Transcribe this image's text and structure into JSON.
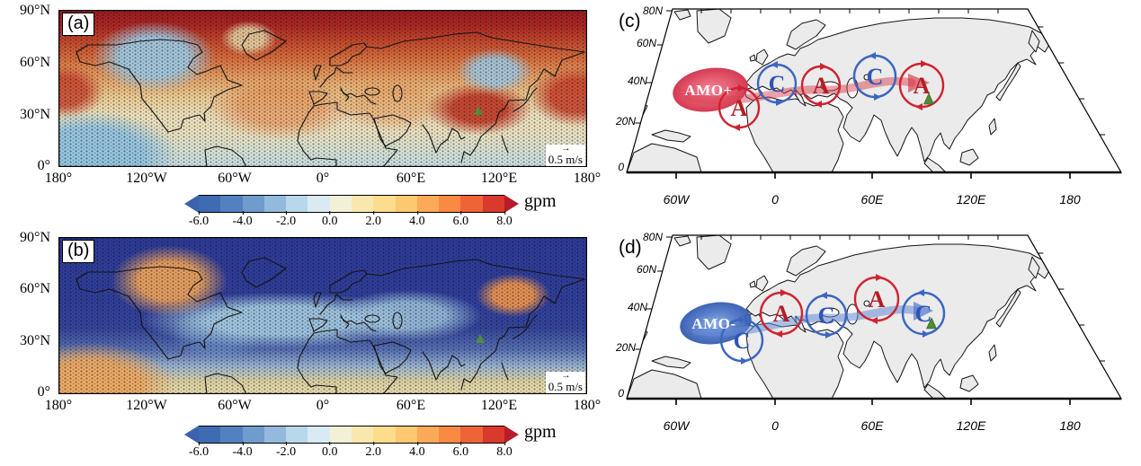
{
  "figure": {
    "panel_a": {
      "tag": "(a)",
      "lat_ticks": [
        "90°N",
        "60°N",
        "30°N",
        "0°"
      ],
      "lon_ticks": [
        "180°",
        "120°W",
        "60°W",
        "0°",
        "60°E",
        "120°E",
        "180°"
      ],
      "vector_ref": "0.5 m/s"
    },
    "panel_b": {
      "tag": "(b)",
      "lat_ticks": [
        "90°N",
        "60°N",
        "30°N",
        "0°"
      ],
      "lon_ticks": [
        "180°",
        "120°W",
        "60°W",
        "0°",
        "60°E",
        "120°E",
        "180°"
      ],
      "vector_ref": "0.5 m/s"
    },
    "colorbar": {
      "ticks": [
        "-6.0",
        "-4.0",
        "-2.0",
        "0.0",
        "2.0",
        "4.0",
        "6.0",
        "8.0"
      ],
      "unit": "gpm",
      "left_arrow": "#3c63ad",
      "right_arrow": "#b81b2c",
      "segments": [
        "#3f6bb3",
        "#5381bf",
        "#6f9ccd",
        "#93badd",
        "#b8d7ea",
        "#daeaf3",
        "#f2f1d7",
        "#f9e8ae",
        "#fcdc8d",
        "#fdc970",
        "#fcaa57",
        "#f98a43",
        "#ef6437",
        "#d93a2b"
      ]
    },
    "panel_c": {
      "tag": "(c)",
      "lat_ticks": [
        "80N",
        "60N",
        "40N",
        "20N",
        "0"
      ],
      "lon_ticks": [
        "60W",
        "0",
        "60E",
        "120E",
        "180"
      ],
      "amo_label": "AMO+",
      "cells": [
        {
          "letter": "A",
          "type": "anticyclone"
        },
        {
          "letter": "C",
          "type": "cyclone"
        },
        {
          "letter": "A",
          "type": "anticyclone"
        },
        {
          "letter": "C",
          "type": "cyclone"
        },
        {
          "letter": "A",
          "type": "anticyclone"
        }
      ]
    },
    "panel_d": {
      "tag": "(d)",
      "lat_ticks": [
        "80N",
        "60N",
        "40N",
        "20N",
        "0"
      ],
      "lon_ticks": [
        "60W",
        "0",
        "60E",
        "120E",
        "180"
      ],
      "amo_label": "AMO-",
      "cells": [
        {
          "letter": "C",
          "type": "cyclone"
        },
        {
          "letter": "A",
          "type": "anticyclone"
        },
        {
          "letter": "C",
          "type": "cyclone"
        },
        {
          "letter": "A",
          "type": "anticyclone"
        },
        {
          "letter": "C",
          "type": "cyclone"
        }
      ]
    }
  },
  "colors": {
    "anticyclone_letter": "#b21e24",
    "cyclone_letter": "#2f55b5",
    "amo_plus_ellipse": "#d63c52",
    "amo_minus_ellipse": "#3b63c0",
    "green_marker": "#4e8c38",
    "land_fill": "#ebebeb"
  },
  "chart_data": [
    {
      "panel": "a",
      "type": "heatmap",
      "field_unit": "gpm",
      "colorbar_ticks": [
        -6.0,
        -4.0,
        -2.0,
        0.0,
        2.0,
        4.0,
        6.0,
        8.0
      ],
      "lat_ticks_deg": [
        90,
        60,
        30,
        0
      ],
      "lon_ticks": [
        "180",
        "120W",
        "60W",
        "0",
        "60E",
        "120E",
        "180"
      ],
      "overlay": "wind anomaly vectors (small arrows everywhere)",
      "vector_reference_m_per_s": 0.5,
      "pattern_summary": {
        "dominant_sign": "positive (red/orange shading over most mid-to-high latitudes)",
        "positive_centers": [
          {
            "lon": "Arctic 60W-60E",
            "lat": "70-90N",
            "strength": "strongest, >8 gpm"
          },
          {
            "lon": "~100E",
            "lat": "~30N",
            "strength": "strong maximum over East Asia at green-triangle site"
          },
          {
            "lon": "~40W",
            "lat": "~35N",
            "strength": "moderate subtropical Atlantic"
          }
        ],
        "negative_centers": [
          {
            "lon": "~130W",
            "lat": "45-60N",
            "strength": "weak, northeast Pacific"
          },
          {
            "lon": "150-120W",
            "lat": "0-15N",
            "strength": "weak tropical Pacific"
          },
          {
            "lon": "~140E",
            "lat": "~35N",
            "strength": "weak, near Japan"
          }
        ],
        "marker": "green triangle near 100E, 32N"
      }
    },
    {
      "panel": "b",
      "type": "heatmap",
      "field_unit": "gpm",
      "colorbar_ticks": [
        -6.0,
        -4.0,
        -2.0,
        0.0,
        2.0,
        4.0,
        6.0,
        8.0
      ],
      "lat_ticks_deg": [
        90,
        60,
        30,
        0
      ],
      "lon_ticks": [
        "180",
        "120W",
        "60W",
        "0",
        "60E",
        "120E",
        "180"
      ],
      "overlay": "wind anomaly vectors (small arrows everywhere)",
      "vector_reference_m_per_s": 0.5,
      "pattern_summary": {
        "dominant_sign": "negative (deep blue shading over most of the hemisphere)",
        "positive_centers": [
          {
            "lon": "~100W",
            "lat": "45-60N",
            "strength": "orange center over central North America"
          },
          {
            "lon": "170-140W",
            "lat": "0-12N",
            "strength": "orange tropical Pacific corner"
          },
          {
            "lon": "~140E",
            "lat": "~38N",
            "strength": "orange center near Japan"
          }
        ],
        "negative_centers": [
          {
            "lon": "~100E",
            "lat": "~32N",
            "strength": "deep blue over East Asia at green-triangle site"
          }
        ],
        "weak_band": "light-blue band ~30-45N across Atlantic-Europe-central Asia; pale yellow band along 0-10N",
        "marker": "green triangle near 100E, 32N"
      }
    },
    {
      "panel": "c",
      "type": "diagram",
      "ocean_label": "AMO+",
      "wave_train_letters": [
        "A",
        "C",
        "A",
        "C",
        "A"
      ],
      "cell_types": [
        "anticyclone",
        "cyclone",
        "anticyclone",
        "cyclone",
        "anticyclone"
      ],
      "approx_cell_lons": [
        "20W",
        "0",
        "30E",
        "60E",
        "90E"
      ],
      "arrow": "thick semi-transparent red arrow from warm (red) North Atlantic AMO ellipse eastward to East Asia",
      "marker": "green triangle near 95E, 35N",
      "axes": {
        "lat_ticks": [
          "80N",
          "60N",
          "40N",
          "20N",
          "0"
        ],
        "lon_ticks": [
          "60W",
          "0",
          "60E",
          "120E",
          "180"
        ]
      }
    },
    {
      "panel": "d",
      "type": "diagram",
      "ocean_label": "AMO-",
      "wave_train_letters": [
        "C",
        "A",
        "C",
        "A",
        "C"
      ],
      "cell_types": [
        "cyclone",
        "anticyclone",
        "cyclone",
        "anticyclone",
        "cyclone"
      ],
      "approx_cell_lons": [
        "20W",
        "0",
        "30E",
        "60E",
        "90E"
      ],
      "arrow": "thick semi-transparent blue arrow from cold (blue) North Atlantic AMO ellipse eastward to East Asia",
      "marker": "green triangle near 95E, 35N",
      "axes": {
        "lat_ticks": [
          "80N",
          "60N",
          "40N",
          "20N",
          "0"
        ],
        "lon_ticks": [
          "60W",
          "0",
          "60E",
          "120E",
          "180"
        ]
      }
    }
  ]
}
